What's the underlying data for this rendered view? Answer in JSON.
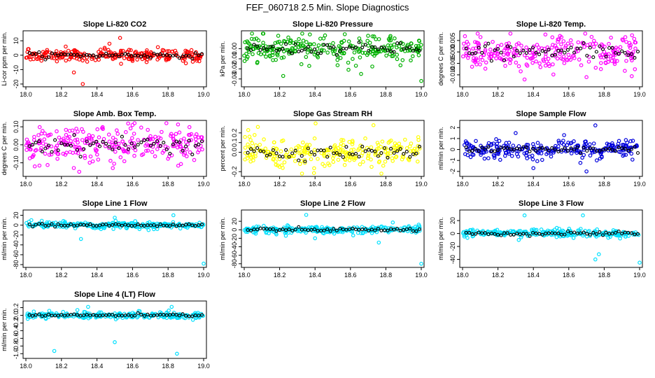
{
  "title": "FEF_060718  2.5 Min. Slope Diagnostics",
  "chart_data": [
    {
      "type": "scatter",
      "title": "Slope Li-820 CO2",
      "ylabel": "Li-cor ppm per min.",
      "color": "#ff0000",
      "xlim": [
        18.0,
        19.0
      ],
      "ylim": [
        -20,
        15
      ],
      "yticks": [
        -20,
        -10,
        0,
        10
      ],
      "ytick_labels": [
        "-20",
        "-10",
        "0",
        "10"
      ],
      "xticks": [
        "18.0",
        "18.2",
        "18.4",
        "18.6",
        "18.8",
        "19.0"
      ],
      "baseline": 0,
      "spread": 2,
      "outliers": [
        [
          18.27,
          -12
        ],
        [
          18.32,
          -20
        ],
        [
          18.53,
          12
        ],
        [
          18.6,
          -4
        ],
        [
          18.47,
          8
        ]
      ]
    },
    {
      "type": "scatter",
      "title": "Slope Li-820 Pressure",
      "ylabel": "kPa per min.",
      "color": "#00b000",
      "xlim": [
        18.0,
        19.0
      ],
      "ylim": [
        -0.035,
        0.015
      ],
      "yticks": [
        -0.03,
        -0.02,
        -0.01,
        0.0
      ],
      "ytick_labels": [
        "-0.03",
        "-0.02",
        "-0.01",
        "0.00"
      ],
      "xticks": [
        "18.0",
        "18.2",
        "18.4",
        "18.6",
        "18.8",
        "19.0"
      ],
      "baseline": 0,
      "spread": 0.006,
      "outliers": [
        [
          18.22,
          -0.027
        ],
        [
          18.66,
          -0.025
        ],
        [
          19.0,
          -0.032
        ],
        [
          18.43,
          0.01
        ]
      ]
    },
    {
      "type": "scatter",
      "title": "Slope Li-820 Temp.",
      "ylabel": "degrees C per min.",
      "color": "#ff00ff",
      "xlim": [
        18.0,
        19.0
      ],
      "ylim": [
        -0.014,
        0.008
      ],
      "yticks": [
        -0.01,
        -0.005,
        0.0,
        0.005
      ],
      "ytick_labels": [
        "-0.010",
        "-0.005",
        "0.000",
        "0.005"
      ],
      "xticks": [
        "18.0",
        "18.2",
        "18.4",
        "18.6",
        "18.8",
        "19.0"
      ],
      "baseline": 0,
      "spread": 0.004,
      "outliers": [
        [
          18.35,
          -0.012
        ],
        [
          18.7,
          -0.011
        ],
        [
          18.55,
          0.007
        ]
      ]
    },
    {
      "type": "scatter",
      "title": "Slope Amb. Box Temp.",
      "ylabel": "degrees C per min.",
      "color": "#ff00ff",
      "xlim": [
        18.0,
        19.0
      ],
      "ylim": [
        -0.16,
        0.12
      ],
      "yticks": [
        -0.1,
        0.0,
        0.1
      ],
      "ytick_labels": [
        "-0.10",
        "0.00",
        "0.10"
      ],
      "xticks": [
        "18.0",
        "18.2",
        "18.4",
        "18.6",
        "18.8",
        "19.0"
      ],
      "baseline": 0,
      "spread": 0.05,
      "outliers": [
        [
          18.05,
          -0.12
        ],
        [
          18.3,
          -0.15
        ],
        [
          18.6,
          0.11
        ]
      ]
    },
    {
      "type": "scatter",
      "title": "Slope Gas Stream RH",
      "ylabel": "percent per min.",
      "color": "#ffff00",
      "xlim": [
        18.0,
        19.0
      ],
      "ylim": [
        -0.22,
        0.3
      ],
      "yticks": [
        -0.2,
        0.0,
        0.1,
        0.2
      ],
      "ytick_labels": [
        "-0.2",
        "0.0",
        "0.1",
        "0.2"
      ],
      "xticks": [
        "18.0",
        "18.2",
        "18.4",
        "18.6",
        "18.8",
        "19.0"
      ],
      "baseline": 0,
      "spread": 0.07,
      "outliers": [
        [
          18.73,
          0.28
        ],
        [
          18.2,
          -0.15
        ]
      ]
    },
    {
      "type": "scatter",
      "title": "Slope Sample Flow",
      "ylabel": "ml/min per min.",
      "color": "#0000dd",
      "xlim": [
        18.0,
        19.0
      ],
      "ylim": [
        -2.2,
        2.4
      ],
      "yticks": [
        -2,
        -1,
        0,
        1,
        2
      ],
      "ytick_labels": [
        "-2",
        "-1",
        "0",
        "1",
        "2"
      ],
      "xticks": [
        "18.0",
        "18.2",
        "18.4",
        "18.6",
        "18.8",
        "19.0"
      ],
      "baseline": 0,
      "spread": 0.4,
      "outliers": [
        [
          18.75,
          2.2
        ],
        [
          18.3,
          1.5
        ],
        [
          18.7,
          -2.0
        ],
        [
          18.4,
          -1.7
        ]
      ]
    },
    {
      "type": "scatter",
      "title": "Slope Line 1 Flow",
      "ylabel": "ml/min per min.",
      "color": "#00e0ff",
      "xlim": [
        18.0,
        19.0
      ],
      "ylim": [
        -80,
        25
      ],
      "yticks": [
        -80,
        -60,
        -40,
        -20,
        0,
        20
      ],
      "ytick_labels": [
        "-80",
        "-60",
        "-40",
        "-20",
        "0",
        "20"
      ],
      "xticks": [
        "18.0",
        "18.2",
        "18.4",
        "18.6",
        "18.8",
        "19.0"
      ],
      "baseline": 0,
      "spread": 3,
      "outliers": [
        [
          18.31,
          -28
        ],
        [
          18.69,
          -10
        ],
        [
          18.83,
          20
        ],
        [
          19.0,
          -78
        ],
        [
          18.5,
          15
        ]
      ]
    },
    {
      "type": "scatter",
      "title": "Slope Line 2 Flow",
      "ylabel": "ml/min per min.",
      "color": "#00e0ff",
      "xlim": [
        18.0,
        19.0
      ],
      "ylim": [
        -82,
        40
      ],
      "yticks": [
        -80,
        -60,
        -40,
        -20,
        0,
        20
      ],
      "ytick_labels": [
        "-80",
        "-60",
        "-40",
        "-20",
        "0",
        "20"
      ],
      "xticks": [
        "18.0",
        "18.2",
        "18.4",
        "18.6",
        "18.8",
        "19.0"
      ],
      "baseline": 0,
      "spread": 4,
      "outliers": [
        [
          18.35,
          35
        ],
        [
          18.76,
          -30
        ],
        [
          19.0,
          -80
        ],
        [
          18.4,
          -20
        ]
      ]
    },
    {
      "type": "scatter",
      "title": "Slope Line 3 Flow",
      "ylabel": "ml/min per min.",
      "color": "#00e0ff",
      "xlim": [
        18.0,
        19.0
      ],
      "ylim": [
        -48,
        32
      ],
      "yticks": [
        -40,
        -20,
        0,
        20
      ],
      "ytick_labels": [
        "-40",
        "-20",
        "0",
        "20"
      ],
      "xticks": [
        "18.0",
        "18.2",
        "18.4",
        "18.6",
        "18.8",
        "19.0"
      ],
      "baseline": 0,
      "spread": 3,
      "outliers": [
        [
          18.35,
          28
        ],
        [
          18.75,
          -40
        ],
        [
          18.77,
          -32
        ],
        [
          19.0,
          -45
        ],
        [
          18.68,
          28
        ]
      ]
    },
    {
      "type": "scatter",
      "title": "Slope Line 4 (LT) Flow",
      "ylabel": "ml/min per min.",
      "color": "#00e0ff",
      "xlim": [
        18.0,
        19.0
      ],
      "ylim": [
        -1.05,
        0.3
      ],
      "yticks": [
        -1.0,
        -0.8,
        -0.6,
        -0.4,
        -0.2,
        0.0,
        0.2
      ],
      "ytick_labels": [
        "-1.0",
        "-0.8",
        "-0.6",
        "-0.4",
        "-0.2",
        "0.0",
        "0.2"
      ],
      "xticks": [
        "18.0",
        "18.2",
        "18.4",
        "18.6",
        "18.8",
        "19.0"
      ],
      "baseline": 0,
      "spread": 0.04,
      "outliers": [
        [
          18.16,
          -0.93
        ],
        [
          18.5,
          -0.7
        ],
        [
          18.85,
          -1.0
        ],
        [
          18.35,
          0.22
        ],
        [
          18.82,
          0.22
        ]
      ]
    }
  ]
}
